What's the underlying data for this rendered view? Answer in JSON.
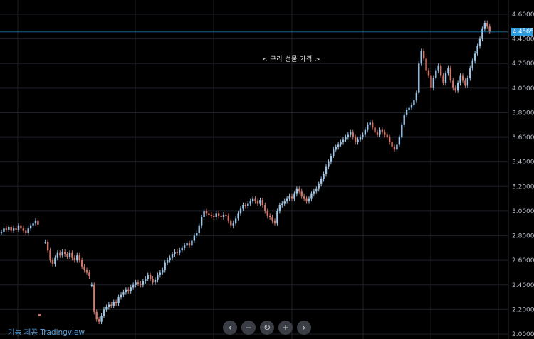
{
  "chart_data": {
    "type": "candlestick",
    "title": "< 구리 선물 가격 >",
    "y_ticks": [
      "4.6000",
      "4.4000",
      "4.2000",
      "4.0000",
      "3.8000",
      "3.6000",
      "3.4000",
      "3.2000",
      "3.0000",
      "2.8000",
      "2.6000",
      "2.4000",
      "2.2000",
      "2.0000"
    ],
    "ylim": [
      2.0,
      4.6
    ],
    "current_price": 4.4565,
    "current_price_label": "4.4565",
    "colors": {
      "up": "#9fc6e6",
      "down": "#d0776b",
      "background": "#000000",
      "grid": "#1e2128",
      "price_line": "#2d9be0"
    },
    "grid": true,
    "series": [
      {
        "gap": false,
        "points": [
          2.83,
          2.86,
          2.85,
          2.87,
          2.84,
          2.86,
          2.85,
          2.88,
          2.86,
          2.84,
          2.82,
          2.86,
          2.88,
          2.9,
          2.92,
          2.89
        ]
      },
      {
        "gap": true,
        "points": [
          2.75,
          2.68,
          2.6,
          2.57,
          2.62,
          2.66,
          2.64,
          2.67,
          2.65,
          2.63,
          2.66,
          2.62,
          2.6,
          2.64,
          2.6,
          2.55,
          2.52,
          2.5,
          2.47
        ]
      },
      {
        "gap": false,
        "points": [
          2.4,
          2.18,
          2.12,
          2.1,
          2.15,
          2.2,
          2.22,
          2.24,
          2.23,
          2.26,
          2.25,
          2.3,
          2.32,
          2.34,
          2.36,
          2.35,
          2.38,
          2.4,
          2.42,
          2.41,
          2.4,
          2.43,
          2.45,
          2.48,
          2.45,
          2.42,
          2.44,
          2.48,
          2.5,
          2.52,
          2.58,
          2.6,
          2.62,
          2.65,
          2.67,
          2.66,
          2.68,
          2.7,
          2.72,
          2.74,
          2.72,
          2.76,
          2.8,
          2.82,
          2.88,
          2.95,
          3.0,
          2.98,
          2.97,
          2.96,
          2.95,
          2.98,
          2.96,
          2.95,
          2.97,
          2.96,
          2.92,
          2.88,
          2.9,
          2.94,
          2.98,
          3.02,
          3.05,
          3.04,
          3.06,
          3.08,
          3.1,
          3.08,
          3.06,
          3.09,
          3.05,
          3.0,
          2.96,
          2.95,
          2.92,
          2.9,
          3.0,
          3.05,
          3.06,
          3.08,
          3.1,
          3.12,
          3.1,
          3.14,
          3.18,
          3.16,
          3.12,
          3.1,
          3.08,
          3.1,
          3.14,
          3.16,
          3.18,
          3.22,
          3.26,
          3.3,
          3.36,
          3.4,
          3.45,
          3.5,
          3.52,
          3.54,
          3.56,
          3.58,
          3.6,
          3.62,
          3.64,
          3.6,
          3.56,
          3.58,
          3.6,
          3.62,
          3.66,
          3.7,
          3.72,
          3.68,
          3.64,
          3.62,
          3.66,
          3.64,
          3.62,
          3.6,
          3.56,
          3.52,
          3.5,
          3.54,
          3.6,
          3.7,
          3.78,
          3.82,
          3.84,
          3.86,
          3.9,
          3.96,
          4.2,
          4.3,
          4.24,
          4.14,
          4.1,
          4.0,
          4.08,
          4.14,
          4.18,
          4.1,
          4.04,
          4.12,
          4.16,
          4.06,
          4.0,
          3.98,
          4.04,
          4.1,
          4.06,
          4.02,
          4.08,
          4.16,
          4.22,
          4.28,
          4.34,
          4.4,
          4.48,
          4.53,
          4.5,
          4.46
        ]
      }
    ],
    "outlier_point": 2.15
  },
  "watermark": "기능 제공 Tradingview",
  "controls": [
    {
      "name": "scroll-left-button",
      "glyph": "‹"
    },
    {
      "name": "zoom-out-button",
      "glyph": "−"
    },
    {
      "name": "reset-button",
      "glyph": "↻"
    },
    {
      "name": "zoom-in-button",
      "glyph": "+"
    },
    {
      "name": "scroll-right-button",
      "glyph": "›"
    }
  ]
}
